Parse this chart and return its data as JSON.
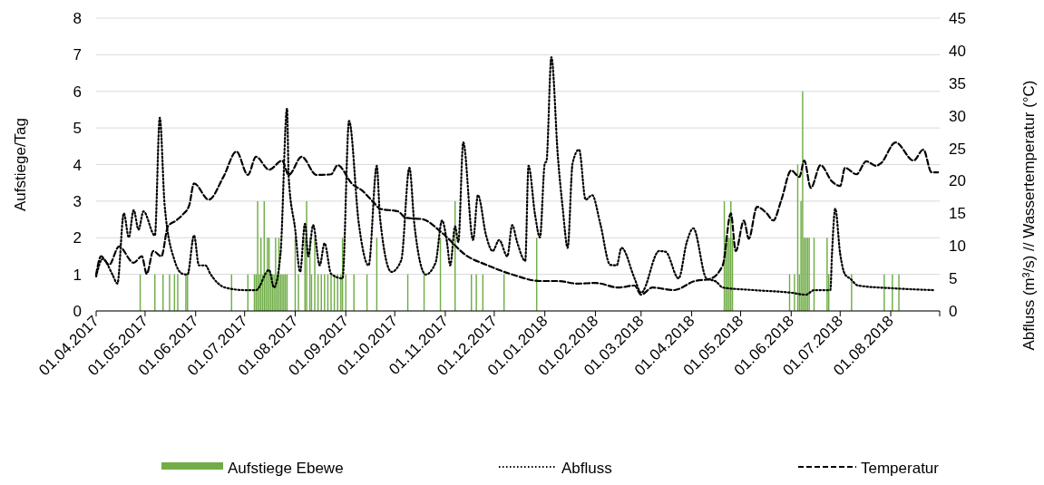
{
  "chart_data": {
    "type": "bar",
    "ylabel": "Aufstiege/Tag",
    "y2label": "Abfluss (m³/s) // Wassertemperatur (°C)",
    "xlim": [
      "2017-04-01",
      "2018-08-31"
    ],
    "xticks": [
      {
        "value": "2017-04-01",
        "label": "01.04.2017"
      },
      {
        "value": "2017-05-01",
        "label": "01.05.2017"
      },
      {
        "value": "2017-06-01",
        "label": "01.06.2017"
      },
      {
        "value": "2017-07-01",
        "label": "01.07.2017"
      },
      {
        "value": "2017-08-01",
        "label": "01.08.2017"
      },
      {
        "value": "2017-09-01",
        "label": "01.09.2017"
      },
      {
        "value": "2017-10-01",
        "label": "01.10.2017"
      },
      {
        "value": "2017-11-01",
        "label": "01.11.2017"
      },
      {
        "value": "2017-12-01",
        "label": "01.12.2017"
      },
      {
        "value": "2018-01-01",
        "label": "01.01.2018"
      },
      {
        "value": "2018-02-01",
        "label": "01.02.2018"
      },
      {
        "value": "2018-03-01",
        "label": "01.03.2018"
      },
      {
        "value": "2018-04-01",
        "label": "01.04.2018"
      },
      {
        "value": "2018-05-01",
        "label": "01.05.2018"
      },
      {
        "value": "2018-06-01",
        "label": "01.06.2018"
      },
      {
        "value": "2018-07-01",
        "label": "01.07.2018"
      },
      {
        "value": "2018-08-01",
        "label": "01.08.2018"
      }
    ],
    "ylim": [
      0,
      8
    ],
    "yticks": [
      0,
      1,
      2,
      3,
      4,
      5,
      6,
      7,
      8
    ],
    "y2lim": [
      0,
      45
    ],
    "y2ticks": [
      0,
      5,
      10,
      15,
      20,
      25,
      30,
      35,
      40,
      45
    ],
    "grid": "y",
    "legend": "bottom",
    "series": [
      {
        "name": "Aufstiege Ebewe",
        "color": "#70ad47",
        "x": [
          "2017-04-28",
          "2017-05-07",
          "2017-05-12",
          "2017-05-16",
          "2017-05-19",
          "2017-05-21",
          "2017-05-26",
          "2017-05-27",
          "2017-06-23",
          "2017-07-03",
          "2017-07-07",
          "2017-07-08",
          "2017-07-09",
          "2017-07-10",
          "2017-07-11",
          "2017-07-12",
          "2017-07-13",
          "2017-07-14",
          "2017-07-15",
          "2017-07-16",
          "2017-07-17",
          "2017-07-18",
          "2017-07-19",
          "2017-07-20",
          "2017-07-21",
          "2017-07-22",
          "2017-07-23",
          "2017-07-24",
          "2017-07-25",
          "2017-07-26",
          "2017-07-27",
          "2017-08-01",
          "2017-08-03",
          "2017-08-07",
          "2017-08-08",
          "2017-08-10",
          "2017-08-11",
          "2017-08-13",
          "2017-08-15",
          "2017-08-17",
          "2017-08-19",
          "2017-08-21",
          "2017-08-23",
          "2017-08-25",
          "2017-08-27",
          "2017-08-29",
          "2017-08-30",
          "2017-09-01",
          "2017-09-06",
          "2017-09-14",
          "2017-09-20",
          "2017-10-09",
          "2017-10-19",
          "2017-10-29",
          "2017-11-07",
          "2017-11-17",
          "2017-11-20",
          "2017-11-24",
          "2017-12-07",
          "2017-12-27",
          "2018-04-21",
          "2018-04-22",
          "2018-04-23",
          "2018-04-24",
          "2018-04-25",
          "2018-04-26",
          "2018-05-31",
          "2018-06-03",
          "2018-06-05",
          "2018-06-06",
          "2018-06-07",
          "2018-06-08",
          "2018-06-09",
          "2018-06-10",
          "2018-06-11",
          "2018-06-12",
          "2018-06-15",
          "2018-06-23",
          "2018-06-24",
          "2018-07-08",
          "2018-07-28",
          "2018-08-02",
          "2018-08-06"
        ],
        "values": [
          1,
          1,
          1,
          1,
          1,
          1,
          1,
          1,
          1,
          1,
          1,
          1,
          3,
          1,
          2,
          1,
          3,
          1,
          2,
          2,
          1,
          1,
          1,
          2,
          1,
          2,
          1,
          1,
          1,
          1,
          1,
          2,
          1,
          2,
          3,
          2,
          1,
          2,
          1,
          1,
          1,
          1,
          1,
          1,
          1,
          1,
          2,
          1,
          1,
          1,
          2,
          1,
          1,
          2,
          3,
          1,
          1,
          1,
          1,
          2,
          3,
          2,
          2,
          2,
          3,
          2,
          1,
          1,
          4,
          1,
          3,
          6,
          2,
          2,
          2,
          2,
          2,
          2,
          1,
          1,
          1,
          1,
          1
        ]
      },
      {
        "name": "Abfluss",
        "type": "line",
        "axis": "y2",
        "color": "#000000",
        "line_style": "dotted",
        "x": [
          "2017-04-01",
          "2017-04-05",
          "2017-04-11",
          "2017-04-14",
          "2017-04-18",
          "2017-04-21",
          "2017-04-24",
          "2017-04-27",
          "2017-04-30",
          "2017-05-07",
          "2017-05-10",
          "2017-05-13",
          "2017-05-19",
          "2017-05-24",
          "2017-05-27",
          "2017-05-31",
          "2017-06-03",
          "2017-06-07",
          "2017-06-10",
          "2017-06-19",
          "2017-07-01",
          "2017-07-08",
          "2017-07-16",
          "2017-07-19",
          "2017-07-23",
          "2017-07-27",
          "2017-07-28",
          "2017-08-01",
          "2017-08-04",
          "2017-08-07",
          "2017-08-09",
          "2017-08-12",
          "2017-08-16",
          "2017-08-19",
          "2017-08-23",
          "2017-08-30",
          "2017-09-03",
          "2017-09-09",
          "2017-09-15",
          "2017-09-20",
          "2017-09-22",
          "2017-09-29",
          "2017-10-05",
          "2017-10-10",
          "2017-10-13",
          "2017-10-20",
          "2017-10-26",
          "2017-10-30",
          "2017-11-02",
          "2017-11-04",
          "2017-11-07",
          "2017-11-09",
          "2017-11-12",
          "2017-11-18",
          "2017-11-21",
          "2017-11-26",
          "2017-11-30",
          "2017-12-04",
          "2017-12-09",
          "2017-12-12",
          "2017-12-15",
          "2017-12-20",
          "2017-12-22",
          "2017-12-26",
          "2017-12-29",
          "2018-01-01",
          "2018-01-02",
          "2018-01-05",
          "2018-01-09",
          "2018-01-12",
          "2018-01-15",
          "2018-01-18",
          "2018-01-22",
          "2018-01-26",
          "2018-01-30",
          "2018-02-04",
          "2018-02-10",
          "2018-02-14",
          "2018-02-17",
          "2018-02-25",
          "2018-03-01",
          "2018-03-12",
          "2018-03-16",
          "2018-03-24",
          "2018-03-29",
          "2018-04-02",
          "2018-04-10",
          "2018-04-16",
          "2018-04-20",
          "2018-05-09",
          "2018-06-01",
          "2018-06-10",
          "2018-06-15",
          "2018-06-25",
          "2018-06-26",
          "2018-06-28",
          "2018-07-01",
          "2018-07-04",
          "2018-07-07",
          "2018-07-12",
          "2018-08-01",
          "2018-08-27"
        ],
        "values": [
          5.3,
          8,
          5.6,
          4.2,
          15,
          11.3,
          15.5,
          12.5,
          15.3,
          11.6,
          29.7,
          16.2,
          7.8,
          5.7,
          5.6,
          11.6,
          7,
          7,
          5.7,
          3.6,
          3.2,
          3.2,
          6.3,
          3.6,
          8.8,
          31.1,
          20.6,
          12.5,
          6,
          13.4,
          8.4,
          13.2,
          7,
          10.4,
          5.7,
          5,
          29.2,
          13.4,
          7,
          22.3,
          14.3,
          6,
          7.8,
          22,
          13.4,
          5.6,
          7.4,
          13.9,
          10.6,
          7,
          13,
          10.6,
          25.9,
          10.9,
          17.8,
          11.6,
          9.2,
          10.9,
          8.4,
          13.2,
          10.6,
          7.7,
          22.3,
          14.8,
          11.3,
          22.7,
          23,
          39,
          23.7,
          15.7,
          9.7,
          22.7,
          24.8,
          17.1,
          17.8,
          13.4,
          7.1,
          7,
          9.7,
          5,
          2.8,
          9.2,
          9.1,
          5,
          10.6,
          12.7,
          5,
          4.5,
          3.6,
          3.2,
          2.8,
          2.5,
          3.2,
          3.2,
          8.8,
          15.7,
          8.8,
          5.6,
          5,
          3.9,
          3.5,
          3.2
        ]
      },
      {
        "name": "Temperatur",
        "type": "line",
        "axis": "y2",
        "color": "#000000",
        "line_style": "dashed",
        "x": [
          "2017-04-01",
          "2017-04-04",
          "2017-04-09",
          "2017-04-15",
          "2017-04-24",
          "2017-04-29",
          "2017-05-02",
          "2017-05-06",
          "2017-05-11",
          "2017-05-15",
          "2017-05-20",
          "2017-05-24",
          "2017-05-28",
          "2017-05-31",
          "2017-06-09",
          "2017-06-18",
          "2017-06-26",
          "2017-07-03",
          "2017-07-08",
          "2017-07-16",
          "2017-07-24",
          "2017-07-28",
          "2017-08-05",
          "2017-08-14",
          "2017-08-23",
          "2017-08-27",
          "2017-09-05",
          "2017-09-11",
          "2017-09-18",
          "2017-09-22",
          "2017-10-03",
          "2017-10-08",
          "2017-10-18",
          "2017-10-30",
          "2017-11-14",
          "2017-11-26",
          "2017-12-12",
          "2017-12-29",
          "2018-01-09",
          "2018-01-21",
          "2018-02-01",
          "2018-02-15",
          "2018-02-25",
          "2018-03-01",
          "2018-03-08",
          "2018-03-21",
          "2018-04-03",
          "2018-04-12",
          "2018-04-20",
          "2018-04-25",
          "2018-04-28",
          "2018-05-03",
          "2018-05-06",
          "2018-05-11",
          "2018-05-17",
          "2018-05-21",
          "2018-05-26",
          "2018-06-01",
          "2018-06-06",
          "2018-06-09",
          "2018-06-13",
          "2018-06-19",
          "2018-06-26",
          "2018-07-01",
          "2018-07-04",
          "2018-07-11",
          "2018-07-17",
          "2018-07-23",
          "2018-07-26",
          "2018-08-04",
          "2018-08-15",
          "2018-08-21",
          "2018-08-26",
          "2018-08-30"
        ],
        "values": [
          5.6,
          8.4,
          7.1,
          9.9,
          7.4,
          8.4,
          5.7,
          9.2,
          8.4,
          13,
          13.9,
          14.8,
          16.2,
          19.6,
          17.1,
          20.6,
          24.5,
          20.9,
          23.7,
          21.7,
          23.1,
          20.9,
          23.7,
          20.9,
          21,
          22.4,
          19.5,
          18.5,
          16.7,
          15.7,
          15.3,
          14.3,
          14.1,
          12,
          8.5,
          7.1,
          5.6,
          4.6,
          4.6,
          4.2,
          4.3,
          3.6,
          3.9,
          2.5,
          3.6,
          3.2,
          4.6,
          4.9,
          7,
          15,
          9.2,
          13.9,
          11.1,
          16,
          15,
          13.9,
          17.1,
          21.6,
          20.6,
          23.1,
          18.9,
          22.4,
          19.9,
          19.2,
          22,
          21,
          23,
          22.3,
          22.7,
          25.9,
          23.1,
          24.8,
          21.3,
          21.3
        ]
      }
    ]
  }
}
